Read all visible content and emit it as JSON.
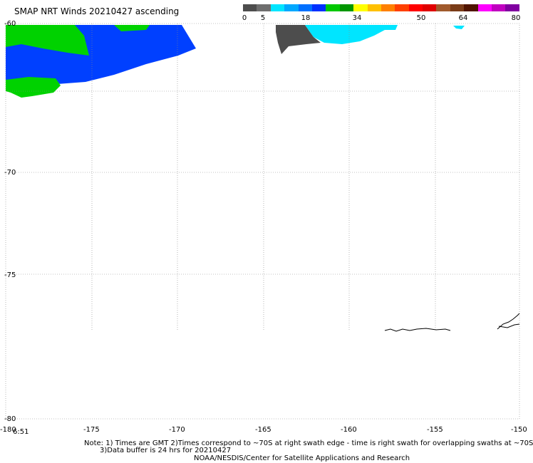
{
  "title": "SMAP NRT Winds 20210427 ascending",
  "colorbar": {
    "ticks": [
      "0",
      "5",
      "18",
      "34",
      "50",
      "64",
      "80"
    ],
    "segments": [
      "#4d4d4d",
      "#6e6e6e",
      "#00e5ff",
      "#00a8ff",
      "#0070ff",
      "#0030ff",
      "#00c800",
      "#009600",
      "#ffff00",
      "#ffc000",
      "#ff8000",
      "#ff4000",
      "#ff0000",
      "#e00000",
      "#a05a2c",
      "#7a3c18",
      "#501400",
      "#ff00ff",
      "#c000c0",
      "#8000a0"
    ]
  },
  "axes": {
    "lat_labels": [
      "-60",
      "-70",
      "-75",
      "-80"
    ],
    "lon_labels": [
      "-180",
      "-175",
      "-170",
      "-165",
      "-160",
      "-155",
      "-150"
    ],
    "time_label": "6:51"
  },
  "notes": {
    "line1": "Note: 1) Times are GMT 2)Times correspond to ~70S at right swath edge - time is right swath for overlapping swaths at ~70S",
    "line2": "3)Data buffer is 24 hrs for 20210427",
    "line3": "NOAA/NESDIS/Center for Satellite Applications and Research"
  },
  "wind_colors": {
    "calm": "#4d4d4d",
    "light": "#00e5ff",
    "moderate": "#0040ff",
    "fresh": "#00d200"
  }
}
